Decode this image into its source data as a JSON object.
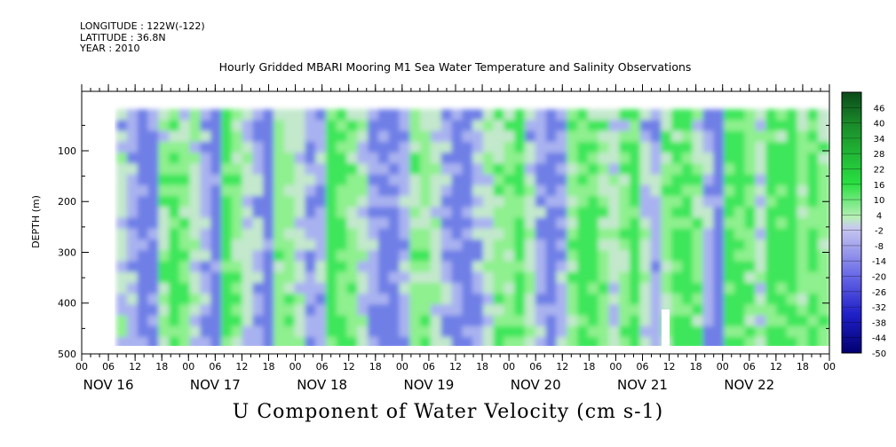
{
  "header": {
    "longitude": "LONGITUDE : 122W(-122)",
    "latitude": "LATITUDE : 36.8N",
    "year": "YEAR : 2010"
  },
  "chart_title": "Hourly Gridded MBARI Mooring M1 Sea Water Temperature and Salinity Observations",
  "bottom_title": "U Component of Water Velocity (cm s-1)",
  "chart_data": {
    "type": "heatmap",
    "title": "Hourly Gridded MBARI Mooring M1 Sea Water Temperature and Salinity Observations",
    "subtitle": "U Component of Water Velocity (cm s-1)",
    "ylabel": "DEPTH (m)",
    "ylim": [
      500,
      0
    ],
    "y_ticks": [
      100,
      200,
      300,
      400,
      500
    ],
    "x_hour_ticks": [
      "00",
      "06",
      "12",
      "18",
      "00",
      "06",
      "12",
      "18",
      "00",
      "06",
      "12",
      "18",
      "00",
      "06",
      "12",
      "18",
      "00",
      "06",
      "12",
      "18",
      "00",
      "06",
      "12",
      "18",
      "00",
      "06",
      "12",
      "18",
      "00"
    ],
    "x_day_labels": [
      "NOV 16",
      "NOV 17",
      "NOV 18",
      "NOV 19",
      "NOV 20",
      "NOV 21",
      "NOV 22"
    ],
    "data_depth_range": [
      20,
      490
    ],
    "data_time_range_hours": [
      8,
      168
    ],
    "colorbar": {
      "labels": [
        "46",
        "40",
        "34",
        "28",
        "22",
        "16",
        "10",
        "4",
        "-2",
        "-8",
        "-14",
        "-20",
        "-26",
        "-32",
        "-38",
        "-44",
        "-50"
      ],
      "range": [
        -50,
        52
      ]
    },
    "column_pattern": [
      0,
      -1,
      -2,
      -2,
      1,
      2,
      1,
      0,
      -1,
      -2,
      2,
      1,
      0,
      -1,
      -2,
      1,
      1,
      0,
      -1,
      -1,
      2,
      2,
      1,
      0,
      -1,
      -2,
      -2,
      -1,
      1,
      1,
      0,
      -1,
      -2,
      -2,
      -1,
      0,
      1,
      1,
      2,
      0,
      -1,
      -2,
      -1,
      1,
      2,
      2,
      1,
      0,
      1,
      2,
      0,
      -1,
      1,
      2,
      2,
      1,
      -1,
      -2,
      2,
      2,
      1,
      0,
      2,
      2,
      2,
      1,
      2,
      1
    ]
  }
}
